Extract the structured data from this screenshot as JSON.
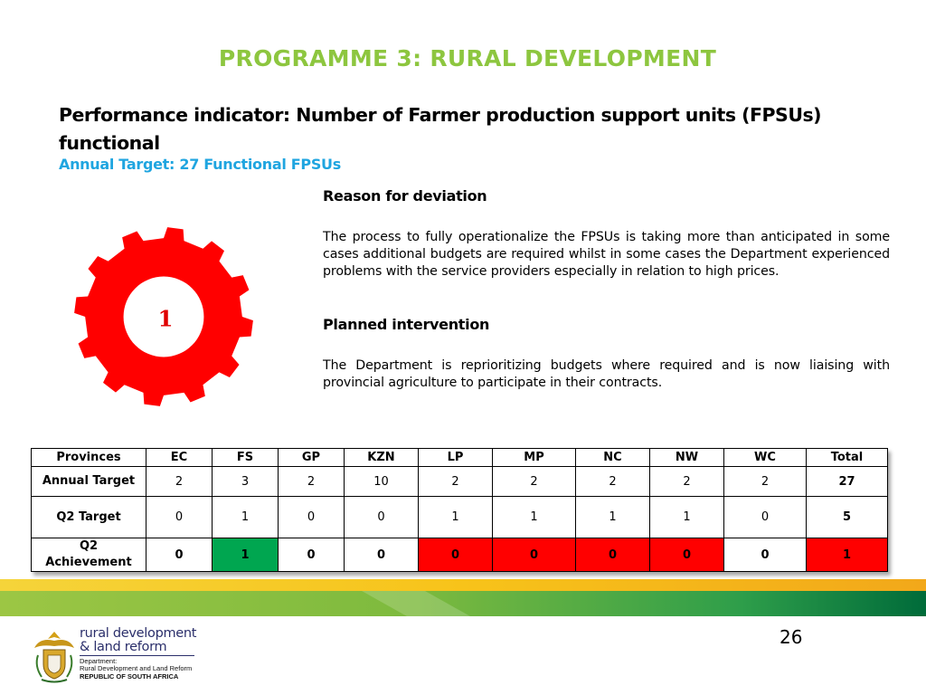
{
  "slide": {
    "title": "PROGRAMME 3: RURAL DEVELOPMENT",
    "indicator": "Performance indicator:  Number of Farmer production support units (FPSUs) functional",
    "annual_target": "Annual Target: 27 Functional FPSUs",
    "page_number": "26"
  },
  "gear": {
    "value": "1",
    "color": "#FF0000"
  },
  "reason": {
    "heading": "Reason for deviation",
    "text": "The process to fully operationalize the FPSUs is taking more than anticipated in some cases additional budgets are required whilst in some cases the Department experienced problems with the service providers especially in relation to high prices."
  },
  "intervention": {
    "heading": "Planned intervention",
    "text": "The Department is reprioritizing budgets where required and  is now liaising with provincial agriculture to participate in their contracts."
  },
  "table": {
    "headers": [
      "Provinces",
      "EC",
      "FS",
      "GP",
      "KZN",
      "LP",
      "MP",
      "NC",
      "NW",
      "WC",
      "Total"
    ],
    "rows": [
      {
        "label": "Annual Target",
        "cells": [
          "2",
          "3",
          "2",
          "10",
          "2",
          "2",
          "2",
          "2",
          "2",
          "27"
        ]
      },
      {
        "label": "Q2 Target",
        "cells": [
          "0",
          "1",
          "0",
          "0",
          "1",
          "1",
          "1",
          "1",
          "0",
          "5"
        ]
      },
      {
        "label_line1": "Q2",
        "label_line2": "Achievement",
        "cells": [
          "0",
          "1",
          "0",
          "0",
          "0",
          "0",
          "0",
          "0",
          "0",
          "1"
        ]
      }
    ],
    "status_colors": {
      "green": "#00A650",
      "red": "#FF0000"
    }
  },
  "logo": {
    "line1": "rural development",
    "line2": "& land reform",
    "dept1": "Department:",
    "dept2": "Rural Development and Land Reform",
    "country": "REPUBLIC OF SOUTH AFRICA"
  }
}
